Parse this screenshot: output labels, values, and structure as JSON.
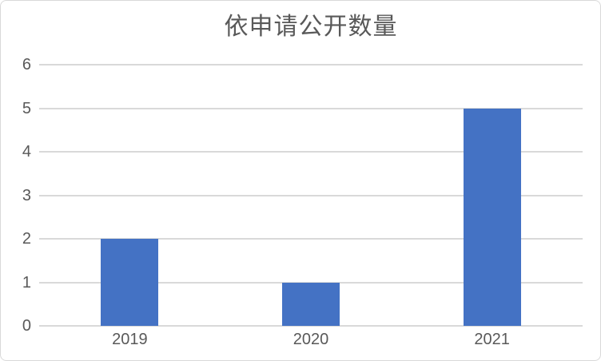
{
  "colors": {
    "bar": "#4472C4",
    "gridline": "#D9D9D9",
    "axis_line": "#D9D9D9",
    "text": "#595959",
    "frame_border": "#D9D9D9",
    "background": "#FFFFFF"
  },
  "chart_data": {
    "type": "bar",
    "title": "依申请公开数量",
    "categories": [
      "2019",
      "2020",
      "2021"
    ],
    "values": [
      2,
      1,
      5
    ],
    "xlabel": "",
    "ylabel": "",
    "ylim": [
      0,
      6
    ],
    "yticks": [
      0,
      1,
      2,
      3,
      4,
      5,
      6
    ],
    "grid": true,
    "legend": "none"
  }
}
